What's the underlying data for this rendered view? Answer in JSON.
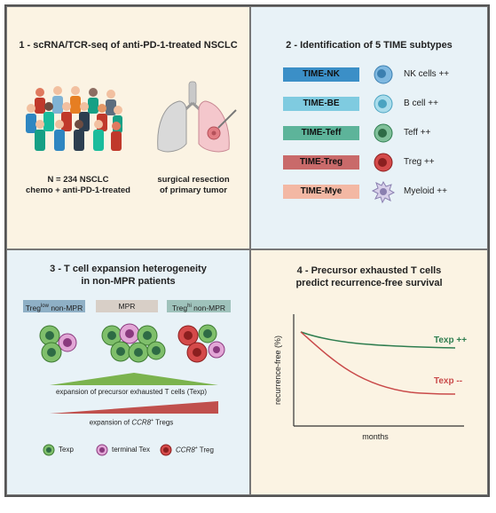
{
  "panel1": {
    "title": "1 - scRNA/TCR-seq of anti-PD-1-treated NSCLC",
    "cohort_line1": "N = 234 NSCLC",
    "cohort_line2": "chemo + anti-PD-1-treated",
    "surgery_line1": "surgical resection",
    "surgery_line2": "of primary tumor",
    "people_icon": "people-group-icon",
    "lung_icon": "lung-icon"
  },
  "panel2": {
    "title": "2 - Identification of 5 TIME subtypes",
    "subtypes": [
      {
        "name": "TIME-NK",
        "cell": "NK cells ++",
        "color": "#3b8fc7"
      },
      {
        "name": "TIME-BE",
        "cell": "B cell ++",
        "color": "#7fcbe0"
      },
      {
        "name": "TIME-Teff",
        "cell": "Teff ++",
        "color": "#5db49a"
      },
      {
        "name": "TIME-Treg",
        "cell": "Treg ++",
        "color": "#c96a6a"
      },
      {
        "name": "TIME-Mye",
        "cell": "Myeloid ++",
        "color": "#f3b8a4"
      }
    ]
  },
  "panel3": {
    "title_line1": "3 - T cell expansion heterogeneity",
    "title_line2": "in non-MPR patients",
    "groups": [
      {
        "label": "Treg",
        "sup": "low",
        "rest": " non-MPR",
        "color": "#8fb0c6"
      },
      {
        "label": "MPR",
        "sup": "",
        "rest": "",
        "color": "#d8cfc7"
      },
      {
        "label": "Treg",
        "sup": "hi",
        "rest": " non-MPR",
        "color": "#9fc2bb"
      }
    ],
    "texp_expansion": "expansion of precursor exhausted T cells (Texp)",
    "treg_expansion_prefix": "expansion of ",
    "treg_expansion_gene": "CCR8",
    "treg_expansion_sup": "+",
    "treg_expansion_suffix": " Tregs",
    "legend": {
      "texp": "Texp",
      "terminal": "terminal Tex",
      "ccr8_gene": "CCR8",
      "ccr8_sup": "+",
      "ccr8_suffix": " Treg"
    },
    "colors": {
      "green_gradient": "#7bb34e",
      "red_gradient": "#c0504d"
    }
  },
  "panel4": {
    "title_line1": "4 - Precursor exhausted T cells",
    "title_line2": "predict recurrence-free survival",
    "ylabel": "recurrence-free (%)",
    "xlabel": "months",
    "curve_plus": "Texp ++",
    "curve_minus": "Texp --",
    "colors": {
      "plus": "#2e7d4f",
      "minus": "#c94a4a"
    }
  }
}
